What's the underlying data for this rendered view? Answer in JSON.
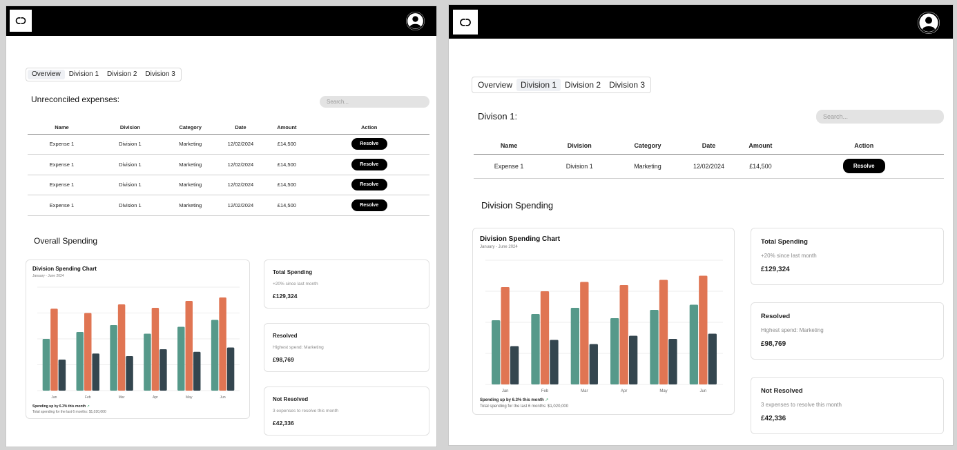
{
  "logo_icon": "chanel-logo-icon",
  "avatar_icon": "user-avatar-icon",
  "colors": {
    "teal": "#56998a",
    "orange": "#e07553",
    "slate": "#34464f"
  },
  "table_headers": [
    "Name",
    "Division",
    "Category",
    "Date",
    "Amount",
    "Action"
  ],
  "left": {
    "tabs": [
      "Overview",
      "Division 1",
      "Division 2",
      "Division 3"
    ],
    "active_tab": 0,
    "section_title": "Unreconciled expenses:",
    "search_placeholder": "Search...",
    "rows": [
      {
        "name": "Expense 1",
        "division": "Division 1",
        "category": "Marketing",
        "date": "12/02/2024",
        "amount": "£14,500",
        "action": "Resolve"
      },
      {
        "name": "Expense 1",
        "division": "Division 1",
        "category": "Marketing",
        "date": "12/02/2024",
        "amount": "£14,500",
        "action": "Resolve"
      },
      {
        "name": "Expense 1",
        "division": "Division 1",
        "category": "Marketing",
        "date": "12/02/2024",
        "amount": "£14,500",
        "action": "Resolve"
      },
      {
        "name": "Expense 1",
        "division": "Division 1",
        "category": "Marketing",
        "date": "12/02/2024",
        "amount": "£14,500",
        "action": "Resolve"
      }
    ],
    "spending_title": "Overall Spending",
    "chart": {
      "title": "Division Spending Chart",
      "subtitle": "January - June 2024",
      "footer_trend": "Spending up by 6.3% this month",
      "footer_total": "Total spending for the last 6 months: $1,020,000"
    },
    "stats": [
      {
        "title": "Total Spending",
        "sub": "+20% since last month",
        "value": "£129,324"
      },
      {
        "title": "Resolved",
        "sub": "Highest spend: Marketing",
        "value": "£98,769"
      },
      {
        "title": "Not Resolved",
        "sub": "3 expenses to resolve this month",
        "value": "£42,336"
      }
    ]
  },
  "right": {
    "tabs": [
      "Overview",
      "Division 1",
      "Division 2",
      "Division 3"
    ],
    "active_tab": 1,
    "section_title": "Divison 1:",
    "search_placeholder": "Search...",
    "rows": [
      {
        "name": "Expense 1",
        "division": "Division 1",
        "category": "Marketing",
        "date": "12/02/2024",
        "amount": "£14,500",
        "action": "Resolve"
      }
    ],
    "spending_title": "Division Spending",
    "chart": {
      "title": "Division Spending Chart",
      "subtitle": "January - June 2024",
      "footer_trend": "Spending up by 6.3% this month",
      "footer_total": "Total spending for the last 6 months: $1,020,000"
    },
    "stats": [
      {
        "title": "Total Spending",
        "sub": "+20% since last month",
        "value": "£129,324"
      },
      {
        "title": "Resolved",
        "sub": "Highest spend: Marketing",
        "value": "£98,769"
      },
      {
        "title": "Not Resolved",
        "sub": "3 expenses to resolve this month",
        "value": "£42,336"
      }
    ]
  },
  "chart_data": [
    {
      "type": "bar",
      "title": "Division Spending Chart",
      "subtitle": "January - June 2024",
      "categories": [
        "Jan",
        "Feb",
        "Mar",
        "Apr",
        "May",
        "Jun"
      ],
      "series": [
        {
          "values": [
            60,
            68,
            76,
            66,
            74,
            82
          ]
        },
        {
          "values": [
            95,
            90,
            100,
            96,
            104,
            108
          ]
        },
        {
          "values": [
            36,
            43,
            40,
            48,
            45,
            50
          ]
        }
      ],
      "ylim": [
        0,
        120
      ],
      "grid": true
    },
    {
      "type": "bar",
      "title": "Division Spending Chart",
      "subtitle": "January - June 2024",
      "categories": [
        "Jan",
        "Feb",
        "Mar",
        "Apr",
        "May",
        "Jun"
      ],
      "series": [
        {
          "values": [
            62,
            68,
            74,
            64,
            72,
            77
          ]
        },
        {
          "values": [
            94,
            90,
            99,
            96,
            101,
            105
          ]
        },
        {
          "values": [
            37,
            43,
            39,
            47,
            44,
            49
          ]
        }
      ],
      "ylim": [
        0,
        120
      ],
      "grid": true
    }
  ]
}
